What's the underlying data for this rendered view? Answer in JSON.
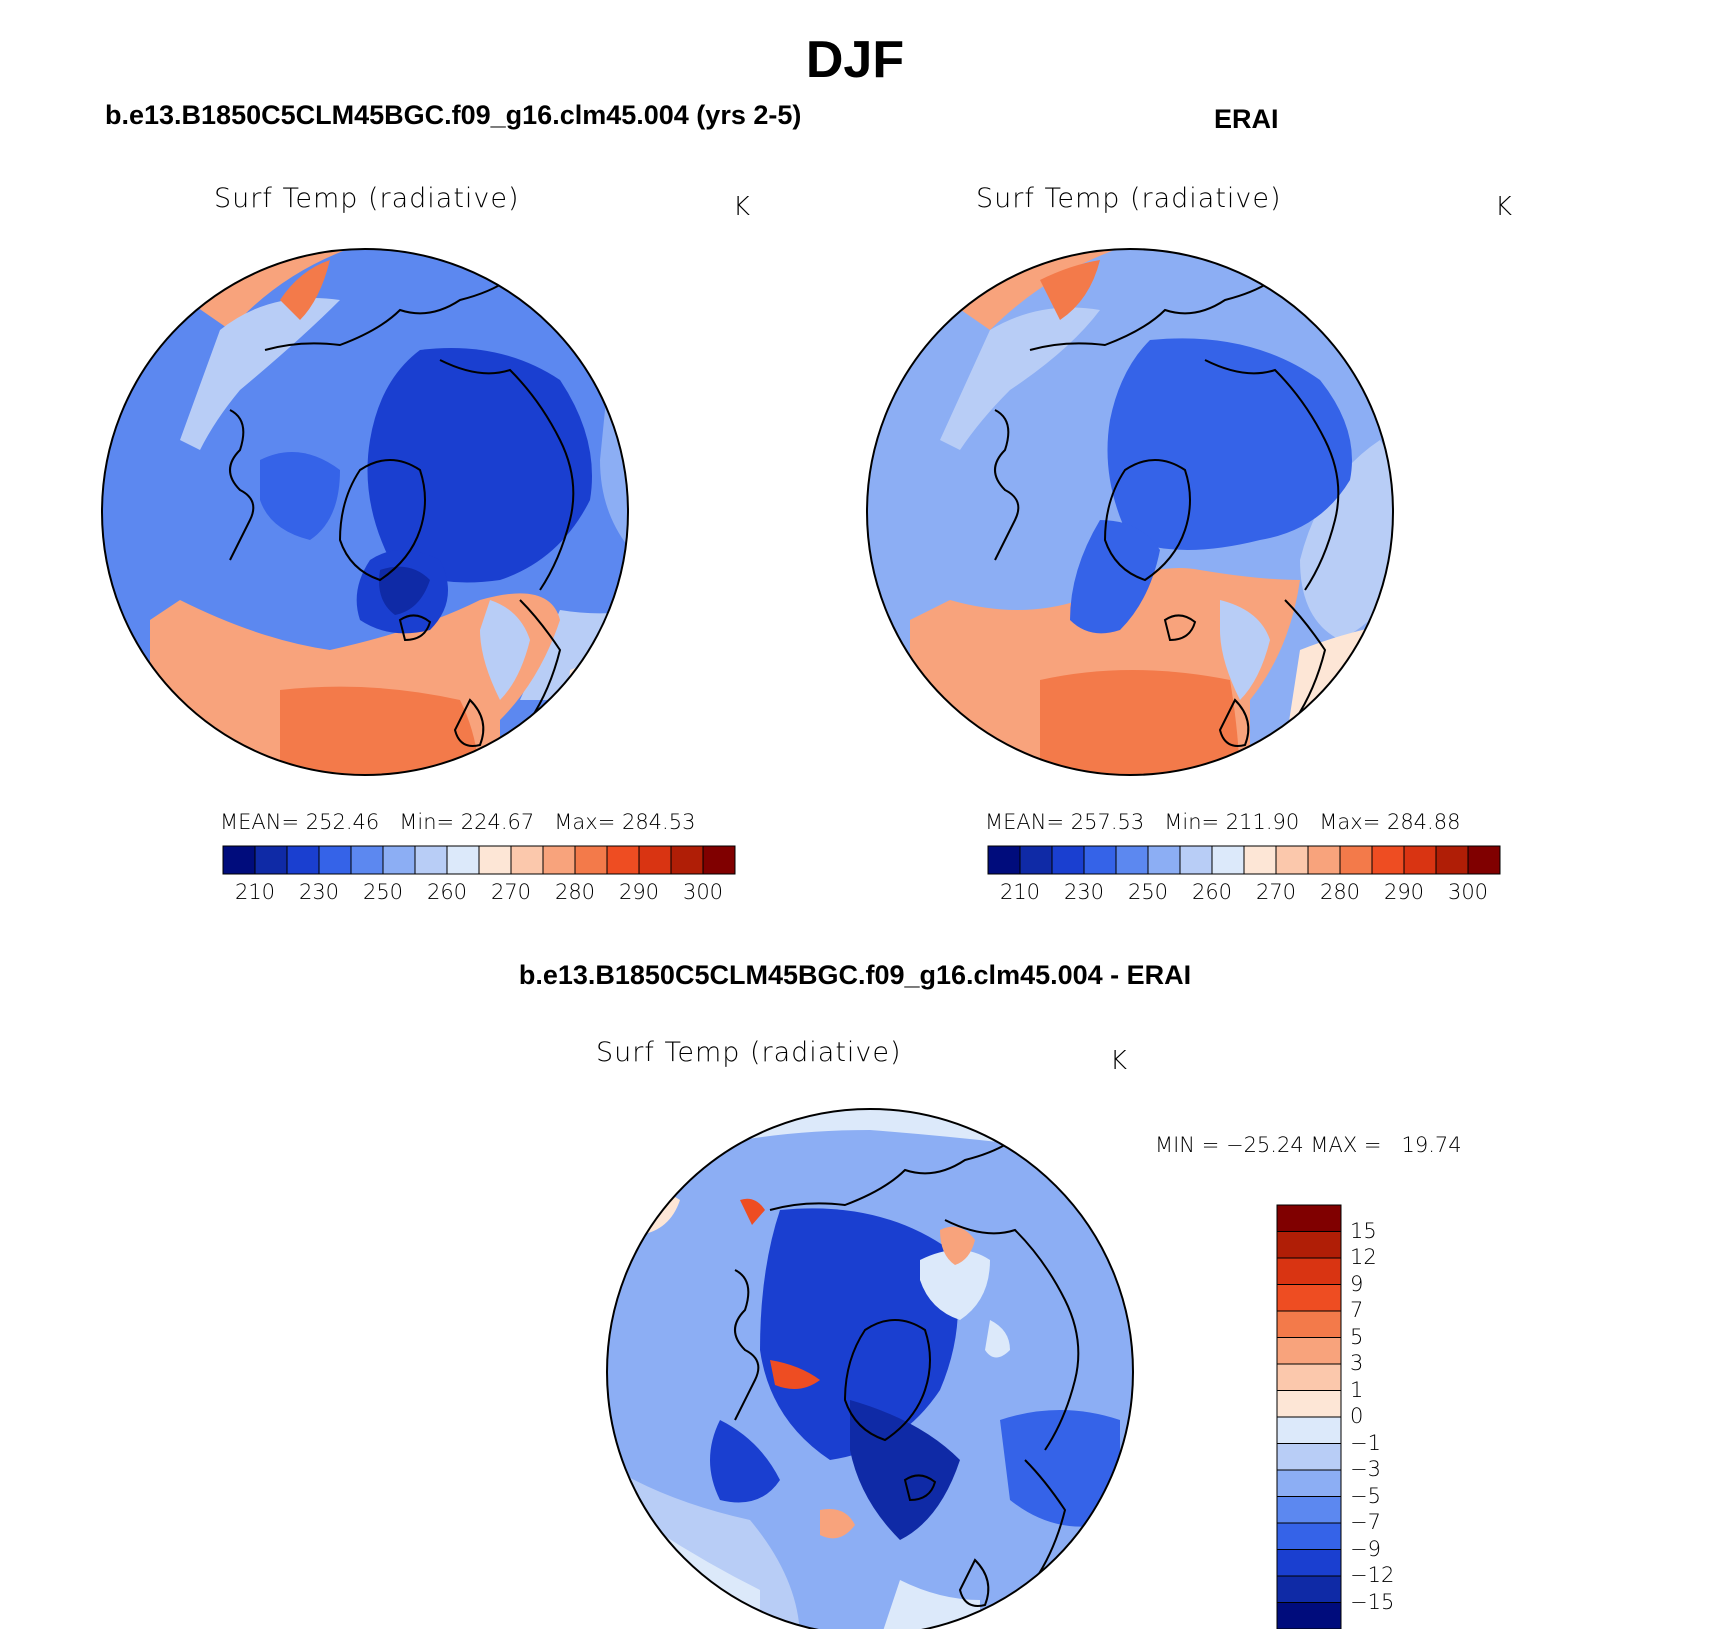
{
  "figure": {
    "title": "DJF",
    "left_panel_title": "b.e13.B1850C5CLM45BGC.f09_g16.clm45.004 (yrs 2-5)",
    "right_panel_title": "ERAI",
    "diff_panel_title": "b.e13.B1850C5CLM45BGC.f09_g16.clm45.004 - ERAI"
  },
  "panels": {
    "left": {
      "variable": "Surf Temp (radiative)",
      "units": "K",
      "stats": "MEAN= 252.46   Min= 224.67   Max= 284.53"
    },
    "right": {
      "variable": "Surf Temp (radiative)",
      "units": "K",
      "stats": "MEAN= 257.53   Min= 211.90   Max= 284.88"
    },
    "diff": {
      "variable": "Surf Temp (radiative)",
      "units": "K",
      "stats": "MIN = −25.24 MAX =   19.74"
    }
  },
  "colorbar_abs": {
    "labels": [
      "210",
      "230",
      "250",
      "260",
      "270",
      "280",
      "290",
      "300"
    ],
    "colors": [
      "#000c7c",
      "#0f2aa6",
      "#1a3fd0",
      "#3563e8",
      "#5c88f0",
      "#8caef4",
      "#b8cdf6",
      "#dce9fa",
      "#fde6d6",
      "#fbc8ac",
      "#f8a37c",
      "#f37a4a",
      "#ee4d22",
      "#d93412",
      "#b01e06",
      "#800000"
    ]
  },
  "colorbar_diff": {
    "labels": [
      "15",
      "12",
      "9",
      "7",
      "5",
      "3",
      "1",
      "0",
      "−1",
      "−3",
      "−5",
      "−7",
      "−9",
      "−12",
      "−15"
    ],
    "colors": [
      "#800000",
      "#b01e06",
      "#d93412",
      "#ee4d22",
      "#f37a4a",
      "#f8a37c",
      "#fbc8ac",
      "#fde6d6",
      "#dce9fa",
      "#b8cdf6",
      "#8caef4",
      "#5c88f0",
      "#3563e8",
      "#1a3fd0",
      "#0f2aa6",
      "#000c7c"
    ]
  }
}
